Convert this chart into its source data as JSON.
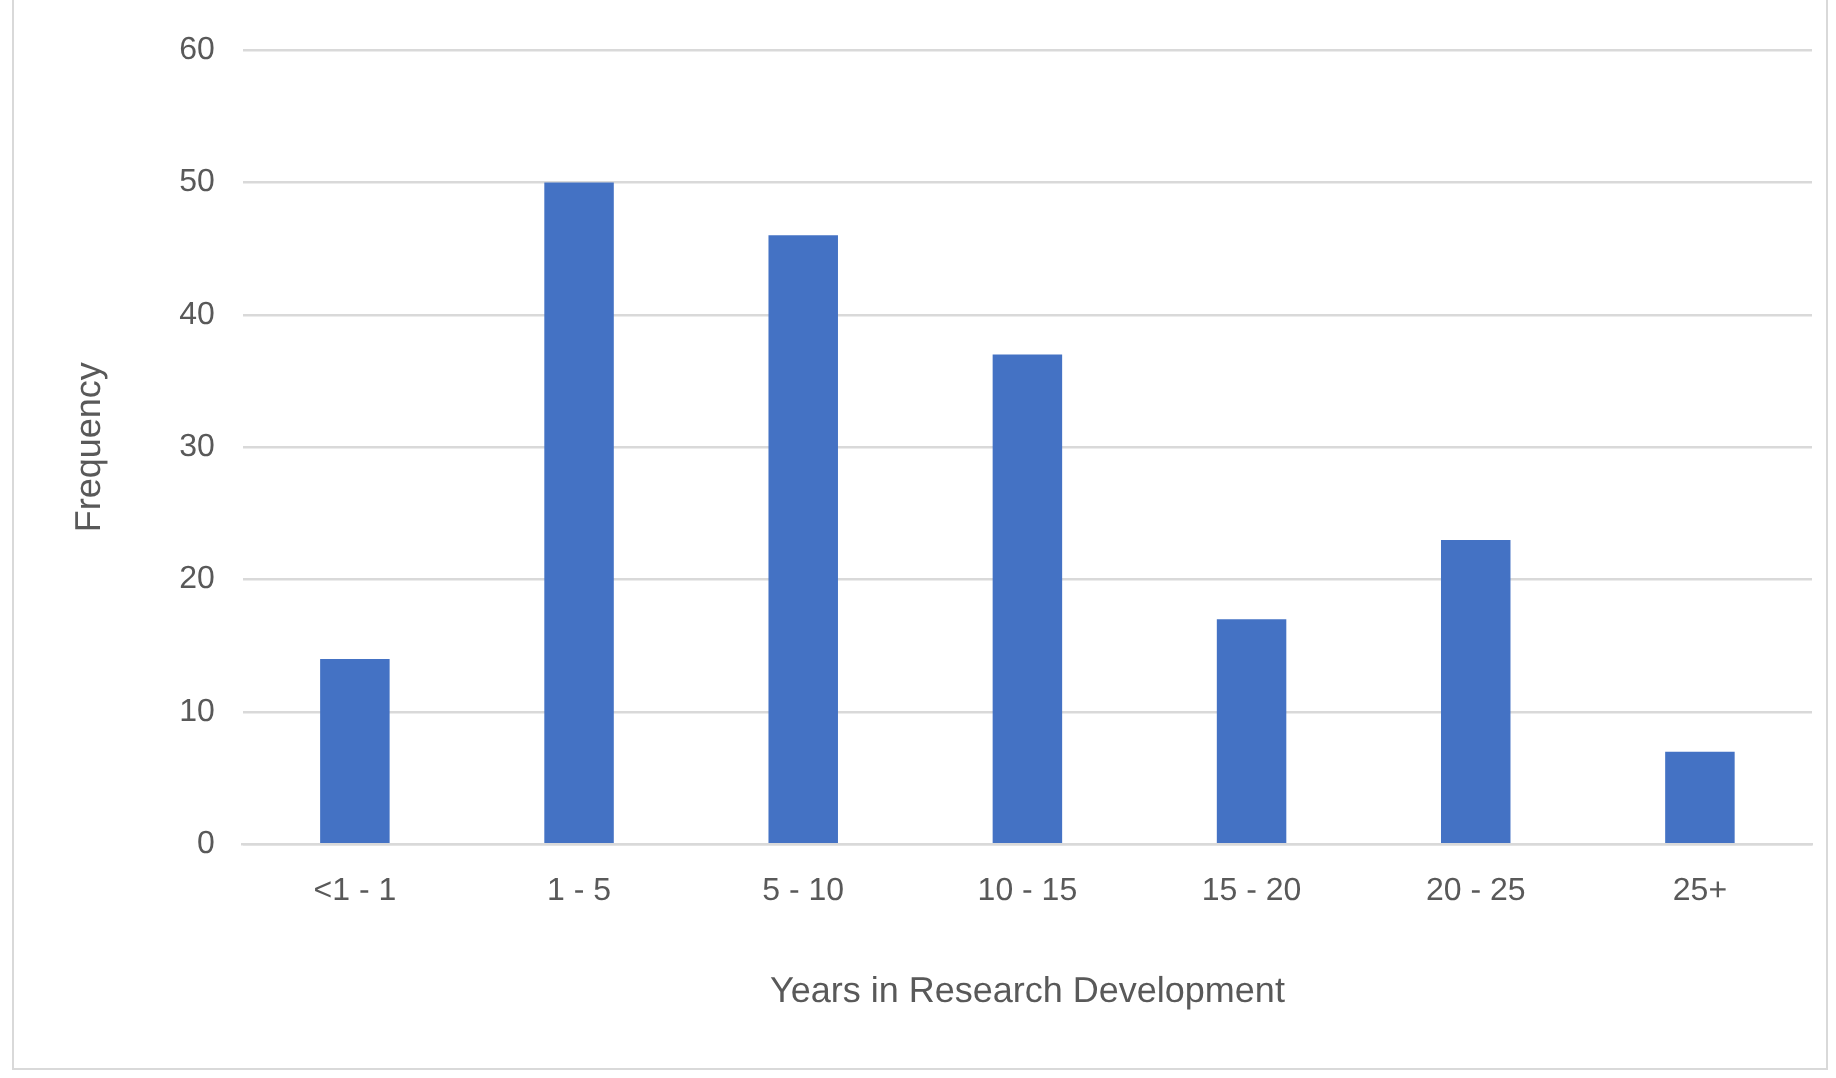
{
  "chart_data": {
    "type": "bar",
    "xlabel": "Years in Research Development",
    "ylabel": "Frequency",
    "categories": [
      "<1 - 1",
      "1 - 5",
      "5 - 10",
      "10 - 15",
      "15 - 20",
      "20 - 25",
      "25+"
    ],
    "values": [
      14,
      50,
      46,
      37,
      17,
      23,
      7
    ],
    "color": "#4472c4",
    "ylim": [
      0,
      60
    ],
    "yticks": [
      0,
      10,
      20,
      30,
      40,
      50,
      60
    ],
    "grid": "y",
    "legend": false
  }
}
